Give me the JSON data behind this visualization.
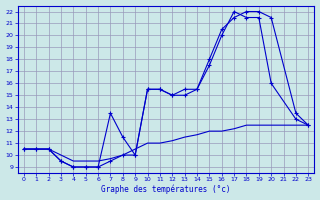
{
  "title": "Graphe des températures (°c)",
  "bg_color": "#cce8e8",
  "grid_color": "#9999bb",
  "line_color": "#0000cc",
  "xlim": [
    -0.5,
    23.5
  ],
  "ylim": [
    8.5,
    22.5
  ],
  "xticks": [
    0,
    1,
    2,
    3,
    4,
    5,
    6,
    7,
    8,
    9,
    10,
    11,
    12,
    13,
    14,
    15,
    16,
    17,
    18,
    19,
    20,
    21,
    22,
    23
  ],
  "yticks": [
    9,
    10,
    11,
    12,
    13,
    14,
    15,
    16,
    17,
    18,
    19,
    20,
    21,
    22
  ],
  "line1_x": [
    0,
    1,
    2,
    3,
    4,
    5,
    6,
    7,
    8,
    9,
    10,
    11,
    12,
    13,
    14,
    15,
    16,
    17,
    18,
    19,
    20,
    21,
    22,
    23
  ],
  "line1_y": [
    10.5,
    10.5,
    10.5,
    10.0,
    9.5,
    9.5,
    9.5,
    9.7,
    10.0,
    10.5,
    11.0,
    11.0,
    11.2,
    11.5,
    11.7,
    12.0,
    12.0,
    12.2,
    12.5,
    12.5,
    12.5,
    12.5,
    12.5,
    12.5
  ],
  "line2_x": [
    0,
    1,
    2,
    3,
    4,
    5,
    6,
    7,
    8,
    9,
    10,
    11,
    12,
    13,
    14,
    15,
    16,
    17,
    18,
    19,
    20,
    22,
    23
  ],
  "line2_y": [
    10.5,
    10.5,
    10.5,
    9.5,
    9.0,
    9.0,
    9.0,
    9.5,
    10.0,
    10.0,
    15.5,
    15.5,
    15.0,
    15.0,
    15.5,
    17.5,
    20.0,
    22.0,
    21.5,
    21.5,
    16.0,
    13.0,
    12.5
  ],
  "line3_x": [
    0,
    1,
    2,
    3,
    4,
    5,
    6,
    7,
    8,
    9,
    10,
    11,
    12,
    13,
    14,
    15,
    16,
    17,
    18,
    19,
    20,
    22,
    23
  ],
  "line3_y": [
    10.5,
    10.5,
    10.5,
    9.5,
    9.0,
    9.0,
    9.0,
    13.5,
    11.5,
    10.0,
    15.5,
    15.5,
    15.0,
    15.5,
    15.5,
    18.0,
    20.5,
    21.5,
    22.0,
    22.0,
    21.5,
    13.5,
    12.5
  ]
}
